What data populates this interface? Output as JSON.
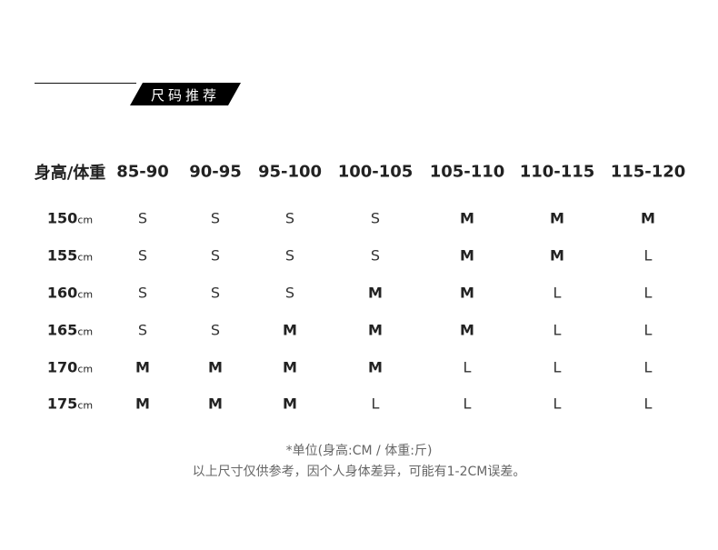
{
  "title": "尺码推荐",
  "table": {
    "corner": "身高/体重",
    "columns": [
      "85-90",
      "90-95",
      "95-100",
      "100-105",
      "105-110",
      "110-115",
      "115-120"
    ],
    "unit": "cm",
    "rows": [
      {
        "height": "150",
        "sizes": [
          "S",
          "S",
          "S",
          "S",
          "M",
          "M",
          "M"
        ]
      },
      {
        "height": "155",
        "sizes": [
          "S",
          "S",
          "S",
          "S",
          "M",
          "M",
          "L"
        ]
      },
      {
        "height": "160",
        "sizes": [
          "S",
          "S",
          "S",
          "M",
          "M",
          "L",
          "L"
        ]
      },
      {
        "height": "165",
        "sizes": [
          "S",
          "S",
          "M",
          "M",
          "M",
          "L",
          "L"
        ]
      },
      {
        "height": "170",
        "sizes": [
          "M",
          "M",
          "M",
          "M",
          "L",
          "L",
          "L"
        ]
      },
      {
        "height": "175",
        "sizes": [
          "M",
          "M",
          "M",
          "L",
          "L",
          "L",
          "L"
        ]
      }
    ]
  },
  "notes": {
    "unit": "*单位(身高:CM / 体重:斤)",
    "disclaimer": "以上尺寸仅供参考，因个人身体差异，可能有1-2CM误差。"
  }
}
